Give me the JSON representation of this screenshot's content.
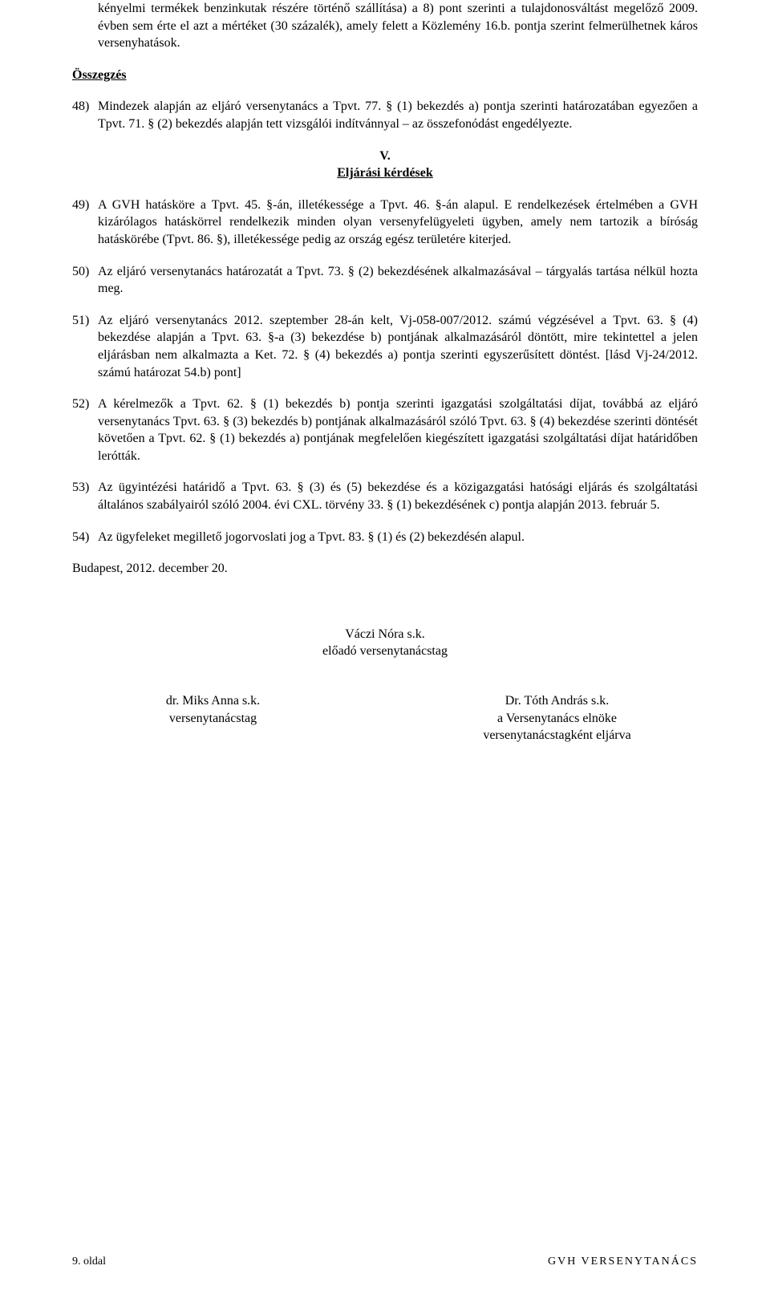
{
  "para_top": "kényelmi termékek benzinkutak részére történő szállítása) a 8) pont szerinti a tulajdonosváltást megelőző 2009. évben sem érte el azt a mértéket (30 százalék), amely felett a Közlemény 16.b. pontja szerint felmerülhetnek káros versenyhatások.",
  "heading_summary": "Összegzés",
  "item48": {
    "num": "48)",
    "text": "Mindezek alapján az eljáró versenytanács a Tpvt. 77. § (1) bekezdés a) pontja szerinti határozatában egyezően a Tpvt. 71. § (2) bekezdés alapján tett vizsgálói indítvánnyal – az összefonódást engedélyezte."
  },
  "section_v": {
    "roman": "V.",
    "title": "Eljárási kérdések"
  },
  "item49": {
    "num": "49)",
    "text": "A GVH hatásköre a Tpvt. 45. §-án, illetékessége a Tpvt. 46. §-án alapul. E rendelkezések értelmében a GVH kizárólagos hatáskörrel rendelkezik minden olyan versenyfelügyeleti ügyben, amely nem tartozik a bíróság hatáskörébe (Tpvt. 86. §), illetékessége pedig az ország egész területére kiterjed."
  },
  "item50": {
    "num": "50)",
    "text": "Az eljáró versenytanács határozatát a Tpvt. 73. § (2) bekezdésének alkalmazásával – tárgyalás tartása nélkül hozta meg."
  },
  "item51": {
    "num": "51)",
    "text": "Az eljáró versenytanács 2012. szeptember 28-án kelt, Vj-058-007/2012. számú végzésével a Tpvt. 63. § (4) bekezdése alapján a Tpvt. 63. §-a (3) bekezdése b) pontjának alkalmazásáról döntött, mire tekintettel a jelen eljárásban nem alkalmazta a Ket. 72. § (4) bekezdés a) pontja szerinti egyszerűsített döntést. [lásd Vj-24/2012. számú határozat 54.b) pont]"
  },
  "item52": {
    "num": "52)",
    "text": "A kérelmezők a Tpvt. 62. § (1) bekezdés b) pontja szerinti igazgatási szolgáltatási díjat, továbbá az eljáró versenytanács Tpvt. 63. § (3) bekezdés b) pontjának alkalmazásáról szóló Tpvt. 63. § (4) bekezdése szerinti döntését követően a Tpvt. 62. § (1) bekezdés a) pontjának megfelelően kiegészített igazgatási szolgáltatási díjat határidőben lerótták."
  },
  "item53": {
    "num": "53)",
    "text": "Az ügyintézési határidő a Tpvt. 63. § (3) és (5) bekezdése és a közigazgatási hatósági eljárás és szolgáltatási általános szabályairól szóló 2004. évi CXL. törvény 33. § (1) bekezdésének c) pontja alapján 2013. február 5."
  },
  "item54": {
    "num": "54)",
    "text": "Az ügyfeleket megillető jogorvoslati jog a Tpvt. 83. § (1) és (2) bekezdésén alapul."
  },
  "date": "Budapest, 2012. december 20.",
  "sig_center": {
    "name": "Váczi Nóra s.k.",
    "role": "előadó versenytanácstag"
  },
  "sig_left": {
    "name": "dr. Miks Anna s.k.",
    "role": "versenytanácstag"
  },
  "sig_right": {
    "name": "Dr. Tóth András s.k.",
    "role1": "a Versenytanács elnöke",
    "role2": "versenytanácstagként eljárva"
  },
  "footer": {
    "left": "9. oldal",
    "right": "GVH VERSENYTANÁCS"
  }
}
